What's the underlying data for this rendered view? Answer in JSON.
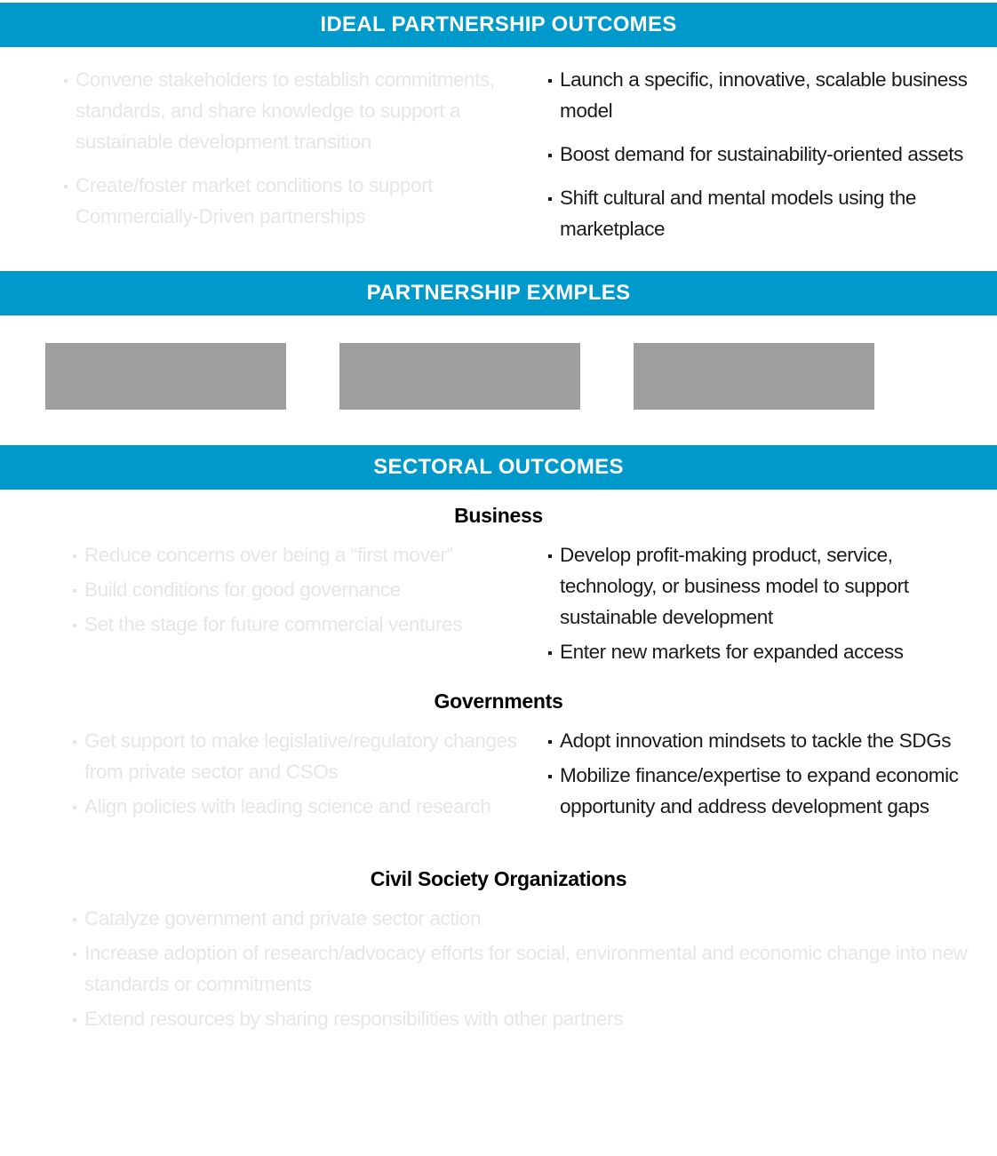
{
  "ideal_outcomes": {
    "header": "IDEAL PARTNERSHIP OUTCOMES",
    "left_items": [
      "Convene stakeholders to establish commitments, standards, and share knowledge to support a sustainable development transition",
      "Create/foster market conditions to support Commercially-Driven partnerships"
    ],
    "right_items": [
      "Launch a specific, innovative, scalable business model",
      "Boost demand for sustainability-oriented assets",
      "Shift cultural and mental models using the marketplace"
    ]
  },
  "partnership_examples": {
    "header": "PARTNERSHIP EXMPLES"
  },
  "sectoral_outcomes": {
    "header": "SECTORAL OUTCOMES",
    "business": {
      "heading": "Business",
      "left_items": [
        "Reduce concerns over being a “first mover”",
        "Build conditions for good governance",
        "Set the stage for future commercial ventures"
      ],
      "right_items": [
        "Develop profit-making product, service, technology, or business model to support sustainable development",
        "Enter new markets for expanded access"
      ]
    },
    "governments": {
      "heading": "Governments",
      "left_items": [
        "Get support to make legislative/regulatory changes from private sector and CSOs",
        "Align policies with leading science and research"
      ],
      "right_items": [
        "Adopt innovation mindsets to tackle the SDGs",
        "Mobilize finance/expertise to expand economic opportunity and address development gaps"
      ]
    },
    "cso": {
      "heading": "Civil Society Organizations",
      "items": [
        "Catalyze government and private sector action",
        "Increase adoption of research/advocacy efforts for social, environmental and economic change into new standards or commitments",
        "Extend resources by sharing responsibilities with other partners"
      ]
    }
  },
  "colors": {
    "band": "#0099cc",
    "band_text": "#ffffff",
    "faded_text": "#e6e6e6",
    "active_text": "#1a1a1a",
    "placeholder_box": "#9e9e9e"
  }
}
